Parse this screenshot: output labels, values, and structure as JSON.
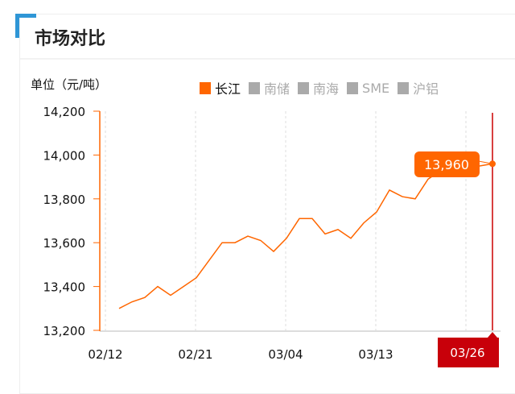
{
  "section_title": "市场对比",
  "chart_data": {
    "type": "line",
    "ylabel": "单位（元/吨）",
    "ylim": [
      13200,
      14200
    ],
    "yticks": [
      13200,
      13400,
      13600,
      13800,
      14000,
      14200
    ],
    "ytick_labels": [
      "13,200",
      "13,400",
      "13,600",
      "13,800",
      "14,000",
      "14,200"
    ],
    "grid": "vertical dashed",
    "legend_position": "top",
    "legend": [
      {
        "name": "长江",
        "active": true,
        "color": "#ff6600"
      },
      {
        "name": "南储",
        "active": false
      },
      {
        "name": "南海",
        "active": false
      },
      {
        "name": "SME",
        "active": false
      },
      {
        "name": "沪铝",
        "active": false
      }
    ],
    "xtick_labels": [
      "02/12",
      "02/21",
      "03/04",
      "03/13"
    ],
    "series": [
      {
        "name": "长江",
        "color": "#ff6600",
        "x": [
          "02/13",
          "02/14",
          "02/15",
          "02/18",
          "02/19",
          "02/20",
          "02/21",
          "02/22",
          "02/25",
          "02/26",
          "02/27",
          "02/28",
          "03/01",
          "03/04",
          "03/05",
          "03/06",
          "03/07",
          "03/08",
          "03/11",
          "03/12",
          "03/13",
          "03/14",
          "03/15",
          "03/18",
          "03/19",
          "03/20",
          "03/21",
          "03/22",
          "03/25",
          "03/26"
        ],
        "values": [
          13300,
          13330,
          13350,
          13400,
          13360,
          13400,
          13440,
          13520,
          13600,
          13600,
          13630,
          13610,
          13560,
          13620,
          13710,
          13710,
          13640,
          13660,
          13620,
          13690,
          13740,
          13840,
          13810,
          13800,
          13890,
          13930,
          13950,
          13940,
          13950,
          13960
        ]
      }
    ],
    "tooltip": {
      "date": "03/26",
      "value": "13,960"
    }
  }
}
